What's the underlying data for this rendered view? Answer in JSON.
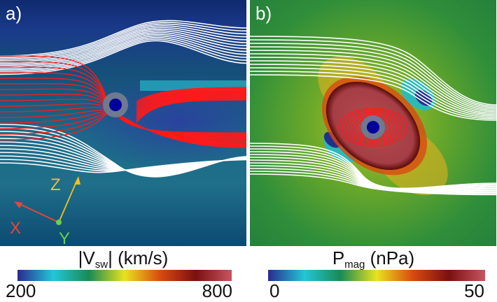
{
  "panels": [
    {
      "label": "a)",
      "colorbar": {
        "quantity": "|V",
        "subscript": "sw",
        "suffix": "| (km/s)",
        "min": "200",
        "max": "800",
        "colors": [
          "#2a2a8e",
          "#22c7d6",
          "#1a8a55",
          "#e9e21f",
          "#d94a10",
          "#7a1010",
          "#c75560"
        ]
      },
      "axes": {
        "x": "X",
        "y": "Y",
        "z": "Z"
      }
    },
    {
      "label": "b)",
      "colorbar": {
        "quantity": "P",
        "subscript": "mag",
        "suffix": " (nPa)",
        "min": "0",
        "max": "50",
        "colors": [
          "#2a2a8e",
          "#22c7d6",
          "#1a8a55",
          "#e9e21f",
          "#d94a10",
          "#7a1010",
          "#c75560"
        ]
      }
    }
  ],
  "colors": {
    "field_lines": "#ffffff",
    "magnetosphere_lines": "#ff1a1a",
    "planet": "#00009a",
    "planet_ring": "#6e7a90",
    "axis_x": "#e8463b",
    "axis_y": "#6ad14a",
    "axis_z": "#f0c020"
  }
}
